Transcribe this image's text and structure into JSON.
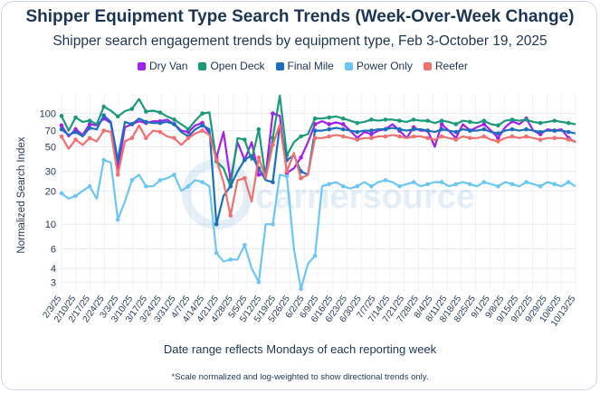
{
  "chart_data": {
    "type": "line",
    "title": "Shipper Equipment Type Search Trends (Week-Over-Week Change)",
    "subtitle": "Shipper search engagement trends by equipment type, Feb 3-October 19, 2025",
    "xlabel": "Date range reflects Mondays of each reporting week",
    "ylabel": "Normalized Search Index",
    "footnote": "*Scale normalized and log-weighted to show directional trends only.",
    "watermark": "carriersource",
    "y_scale": "log",
    "ylim": [
      2.5,
      150
    ],
    "y_ticks": [
      3,
      4,
      6,
      10,
      20,
      30,
      50,
      70,
      100
    ],
    "grid": true,
    "legend_position": "top",
    "x_ticks": [
      "2/3/25",
      "2/10/25",
      "2/17/25",
      "2/24/25",
      "3/3/25",
      "3/10/25",
      "3/17/25",
      "3/24/25",
      "3/31/25",
      "4/7/25",
      "4/14/25",
      "4/21/25",
      "4/28/25",
      "5/5/25",
      "5/12/25",
      "5/19/25",
      "5/26/25",
      "6/2/25",
      "6/9/25",
      "6/16/25",
      "6/23/25",
      "6/30/25",
      "7/7/25",
      "7/14/25",
      "7/21/25",
      "7/28/25",
      "8/4/25",
      "8/11/25",
      "8/18/25",
      "8/25/25",
      "9/1/25",
      "9/8/25",
      "9/15/25",
      "9/22/25",
      "9/29/25",
      "10/6/25",
      "10/13/25"
    ],
    "x": [
      0,
      1,
      2,
      3,
      4,
      5,
      6,
      7,
      8,
      9,
      10,
      11,
      12,
      13,
      14,
      15,
      16,
      17,
      18,
      19,
      20,
      21,
      22,
      23,
      24,
      25,
      26,
      27,
      28,
      29,
      30,
      31,
      32,
      33,
      34,
      35,
      36,
      37,
      38,
      39,
      40,
      41,
      42,
      43,
      44,
      45,
      46,
      47,
      48,
      49,
      50,
      51,
      52,
      53,
      54,
      55,
      56,
      57,
      58,
      59,
      60,
      61,
      62,
      63,
      64,
      65,
      66,
      67,
      68,
      69,
      70,
      71,
      72,
      73
    ],
    "series": [
      {
        "name": "Dry Van",
        "color": "#a020f0",
        "values": [
          78,
          62,
          72,
          64,
          80,
          78,
          90,
          82,
          32,
          75,
          80,
          85,
          82,
          85,
          85,
          88,
          80,
          70,
          68,
          78,
          82,
          66,
          40,
          68,
          25,
          55,
          38,
          55,
          28,
          28,
          100,
          95,
          29,
          32,
          40,
          55,
          80,
          85,
          80,
          83,
          80,
          70,
          60,
          68,
          65,
          70,
          72,
          80,
          70,
          60,
          75,
          70,
          70,
          50,
          80,
          70,
          60,
          80,
          70,
          75,
          80,
          70,
          60,
          75,
          85,
          80,
          90,
          70,
          65,
          72,
          70,
          72,
          60,
          55
        ]
      },
      {
        "name": "Open Deck",
        "color": "#1a9a7a",
        "values": [
          95,
          70,
          92,
          84,
          86,
          80,
          115,
          106,
          94,
          105,
          110,
          135,
          104,
          106,
          102,
          94,
          88,
          80,
          72,
          86,
          100,
          102,
          37,
          32,
          22,
          60,
          58,
          38,
          72,
          26,
          60,
          145,
          42,
          55,
          62,
          65,
          90,
          90,
          92,
          94,
          90,
          86,
          82,
          84,
          88,
          86,
          88,
          88,
          86,
          84,
          88,
          86,
          86,
          82,
          86,
          84,
          80,
          86,
          84,
          82,
          86,
          80,
          78,
          86,
          88,
          86,
          88,
          84,
          82,
          84,
          86,
          84,
          82,
          80
        ]
      },
      {
        "name": "Final Mile",
        "color": "#1a6fbe",
        "values": [
          72,
          64,
          68,
          62,
          74,
          72,
          96,
          84,
          38,
          84,
          80,
          90,
          84,
          82,
          82,
          84,
          80,
          68,
          62,
          72,
          78,
          72,
          10,
          18,
          22,
          30,
          38,
          42,
          32,
          25,
          24,
          78,
          38,
          42,
          30,
          28,
          70,
          70,
          72,
          74,
          72,
          70,
          68,
          70,
          70,
          72,
          72,
          74,
          72,
          70,
          72,
          72,
          70,
          68,
          72,
          70,
          68,
          72,
          70,
          70,
          72,
          68,
          66,
          70,
          72,
          70,
          72,
          70,
          68,
          70,
          70,
          70,
          68,
          66
        ]
      },
      {
        "name": "Power Only",
        "color": "#6cc6f5",
        "values": [
          19,
          17,
          18,
          20,
          22,
          17,
          38,
          36,
          11,
          16,
          25,
          28,
          22,
          22,
          25,
          26,
          28,
          20,
          22,
          25,
          24,
          22,
          5.5,
          4.6,
          4.8,
          4.8,
          6.5,
          4,
          3,
          10,
          10,
          28,
          27,
          6,
          2.6,
          4.4,
          5.2,
          22,
          23,
          24,
          22,
          21,
          22,
          24,
          22,
          24,
          25,
          24,
          22,
          23,
          24,
          22,
          23,
          24,
          24,
          22,
          23,
          24,
          23,
          22,
          24,
          23,
          22,
          24,
          23,
          22,
          24,
          23,
          22,
          24,
          23,
          22,
          24,
          22
        ]
      },
      {
        "name": "Reefer",
        "color": "#f07070",
        "values": [
          62,
          48,
          58,
          52,
          60,
          56,
          70,
          68,
          28,
          56,
          60,
          78,
          60,
          70,
          68,
          62,
          60,
          52,
          60,
          66,
          70,
          64,
          38,
          24,
          12,
          25,
          26,
          16,
          40,
          26,
          52,
          80,
          30,
          44,
          26,
          28,
          60,
          60,
          62,
          64,
          62,
          60,
          58,
          60,
          60,
          62,
          62,
          64,
          62,
          60,
          62,
          62,
          60,
          58,
          62,
          60,
          58,
          62,
          60,
          60,
          62,
          58,
          56,
          60,
          62,
          60,
          62,
          60,
          58,
          60,
          60,
          60,
          58,
          56
        ]
      }
    ]
  }
}
